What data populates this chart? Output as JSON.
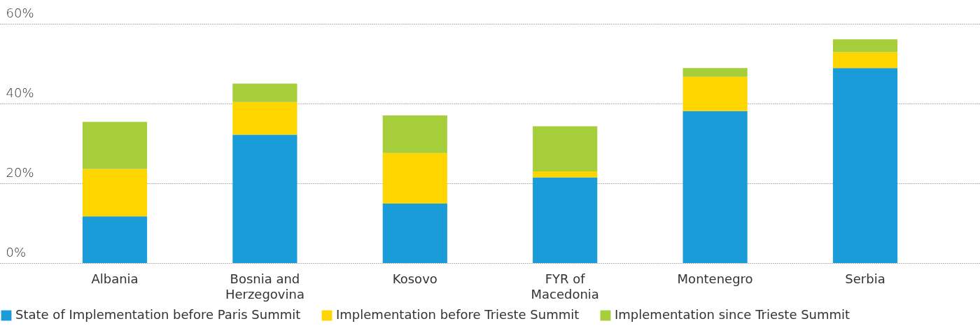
{
  "chart_data": {
    "type": "bar",
    "stacked": true,
    "categories": [
      "Albania",
      "Bosnia and Herzegovina",
      "Kosovo",
      "FYR of Macedonia",
      "Montenegro",
      "Serbia"
    ],
    "series": [
      {
        "name": "State of Implementation before Paris Summit",
        "color": "#1a9cd8",
        "values": [
          11.7,
          32.2,
          14.9,
          21.5,
          38.1,
          48.9
        ]
      },
      {
        "name": "Implementation before Trieste Summit",
        "color": "#ffd500",
        "values": [
          11.9,
          8.2,
          12.7,
          1.5,
          8.6,
          4.0
        ]
      },
      {
        "name": "Implementation since Trieste Summit",
        "color": "#a6cd3a",
        "values": [
          11.8,
          4.6,
          9.4,
          11.3,
          2.2,
          3.2
        ]
      }
    ],
    "ylim": [
      0,
      60
    ],
    "yticks": [
      {
        "value": 0,
        "label": "0%"
      },
      {
        "value": 20,
        "label": "20%"
      },
      {
        "value": 40,
        "label": "40%"
      },
      {
        "value": 60,
        "label": "60%"
      }
    ],
    "grid": "y",
    "legend": "bottom"
  }
}
